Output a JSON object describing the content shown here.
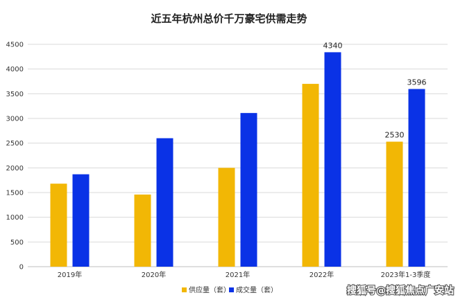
{
  "chart_data": {
    "type": "bar",
    "title": "近五年杭州总价千万豪宅供需走势",
    "categories": [
      "2019年",
      "2020年",
      "2021年",
      "2022年",
      "2023年1-3季度"
    ],
    "series": [
      {
        "name": "供应量（套）",
        "color": "#F2B705",
        "values": [
          1680,
          1460,
          2000,
          3700,
          2530
        ]
      },
      {
        "name": "成交量（套）",
        "color": "#0A32E6",
        "values": [
          1870,
          2600,
          3110,
          4340,
          3596
        ]
      }
    ],
    "data_labels": [
      {
        "series": 1,
        "index": 3,
        "text": "4340"
      },
      {
        "series": 0,
        "index": 4,
        "text": "2530"
      },
      {
        "series": 1,
        "index": 4,
        "text": "3596"
      }
    ],
    "ylim": [
      0,
      4500
    ],
    "yticks": [
      "0",
      "500",
      "1000",
      "1500",
      "2000",
      "2500",
      "3000",
      "3500",
      "4000",
      "4500"
    ],
    "grid": true,
    "legend_position": "bottom"
  },
  "watermark": "搜狐号@搜狐焦点广安站"
}
